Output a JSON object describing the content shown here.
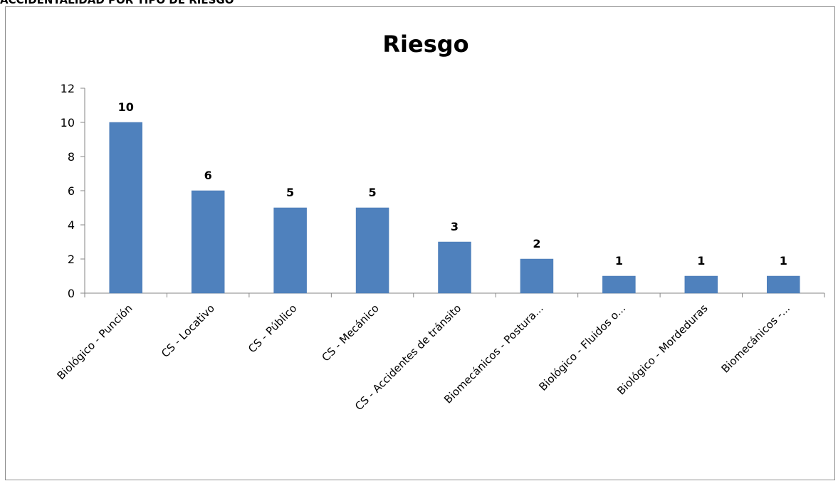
{
  "document": {
    "heading": "ACCIDENTALIDAD POR TIPO DE RIESGO"
  },
  "chart_data": {
    "type": "bar",
    "title": "Riesgo",
    "xlabel": "",
    "ylabel": "",
    "categories": [
      "Biológico - Punción",
      "CS - Locativo",
      "CS - Público",
      "CS - Mecánico",
      "CS - Accidentes de tránsito",
      "Biomecánicos - Postura...",
      "Biológico - Fluidos o...",
      "Biológico - Mordeduras",
      "Biomecánicos -..."
    ],
    "values": [
      10,
      6,
      5,
      5,
      3,
      2,
      1,
      1,
      1
    ],
    "ylim": [
      0,
      12
    ],
    "yticks": [
      0,
      2,
      4,
      6,
      8,
      10,
      12
    ],
    "grid": false,
    "legend": "none",
    "bar_color": "#4f81bd",
    "show_data_labels": true
  }
}
